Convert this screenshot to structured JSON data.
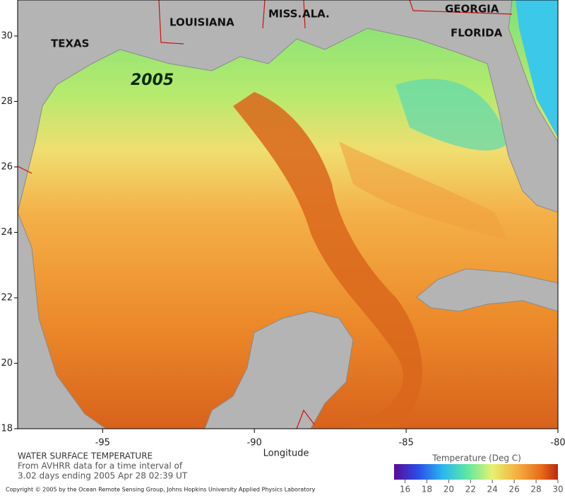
{
  "map": {
    "labels": {
      "texas": "TEXAS",
      "louisiana": "LOUISIANA",
      "miss": "MISS.",
      "ala": "ALA.",
      "georgia": "GEORGIA",
      "florida": "FLORIDA",
      "year": "2005"
    },
    "xlim": [
      -97.8,
      -80
    ],
    "ylim": [
      18,
      31.1
    ],
    "xticks": [
      -95,
      -90,
      -85,
      -80
    ],
    "yticks": [
      18,
      20,
      22,
      24,
      26,
      28,
      30
    ],
    "xlabel": "Longitude"
  },
  "caption": {
    "title": "WATER SURFACE TEMPERATURE",
    "lines": [
      "From AVHRR data for a time interval of",
      "3.02 days ending 2005 Apr 28 02:39 UT"
    ]
  },
  "colorbar": {
    "title": "Temperature (Deg C)",
    "range": [
      15,
      30
    ],
    "ticks": [
      16,
      18,
      20,
      22,
      24,
      26,
      28,
      30
    ]
  },
  "copyright": "Copyright © 2005 by the Ocean Remote Sensing Group, Johns Hopkins University Applied Physics Laboratory"
}
